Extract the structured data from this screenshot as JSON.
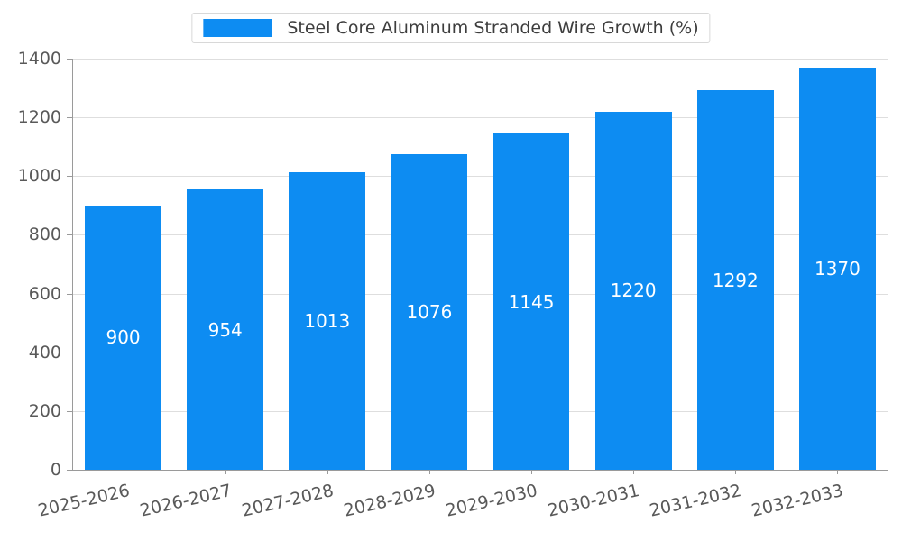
{
  "chart_data": {
    "type": "bar",
    "categories": [
      "2025-2026",
      "2026-2027",
      "2027-2028",
      "2028-2029",
      "2029-2030",
      "2030-2031",
      "2031-2032",
      "2032-2033"
    ],
    "series": [
      {
        "name": "Steel Core Aluminum Stranded Wire Growth (%)",
        "values": [
          900,
          954,
          1013,
          1076,
          1145,
          1220,
          1292,
          1370
        ]
      }
    ],
    "title": "Steel Core Aluminum Stranded Wire Growth (%)",
    "xlabel": "",
    "ylabel": "",
    "ylim": [
      0,
      1400
    ],
    "ytick_step": 200,
    "grid": true,
    "legend_position": "top-center",
    "bar_color": "#0d8cf2",
    "value_labels_shown": true,
    "value_label_color": "#ffffff",
    "tick_text_color": "#595959",
    "grid_color": "#dedede",
    "axis_color": "#9a9a9a",
    "background_color": "#ffffff"
  }
}
